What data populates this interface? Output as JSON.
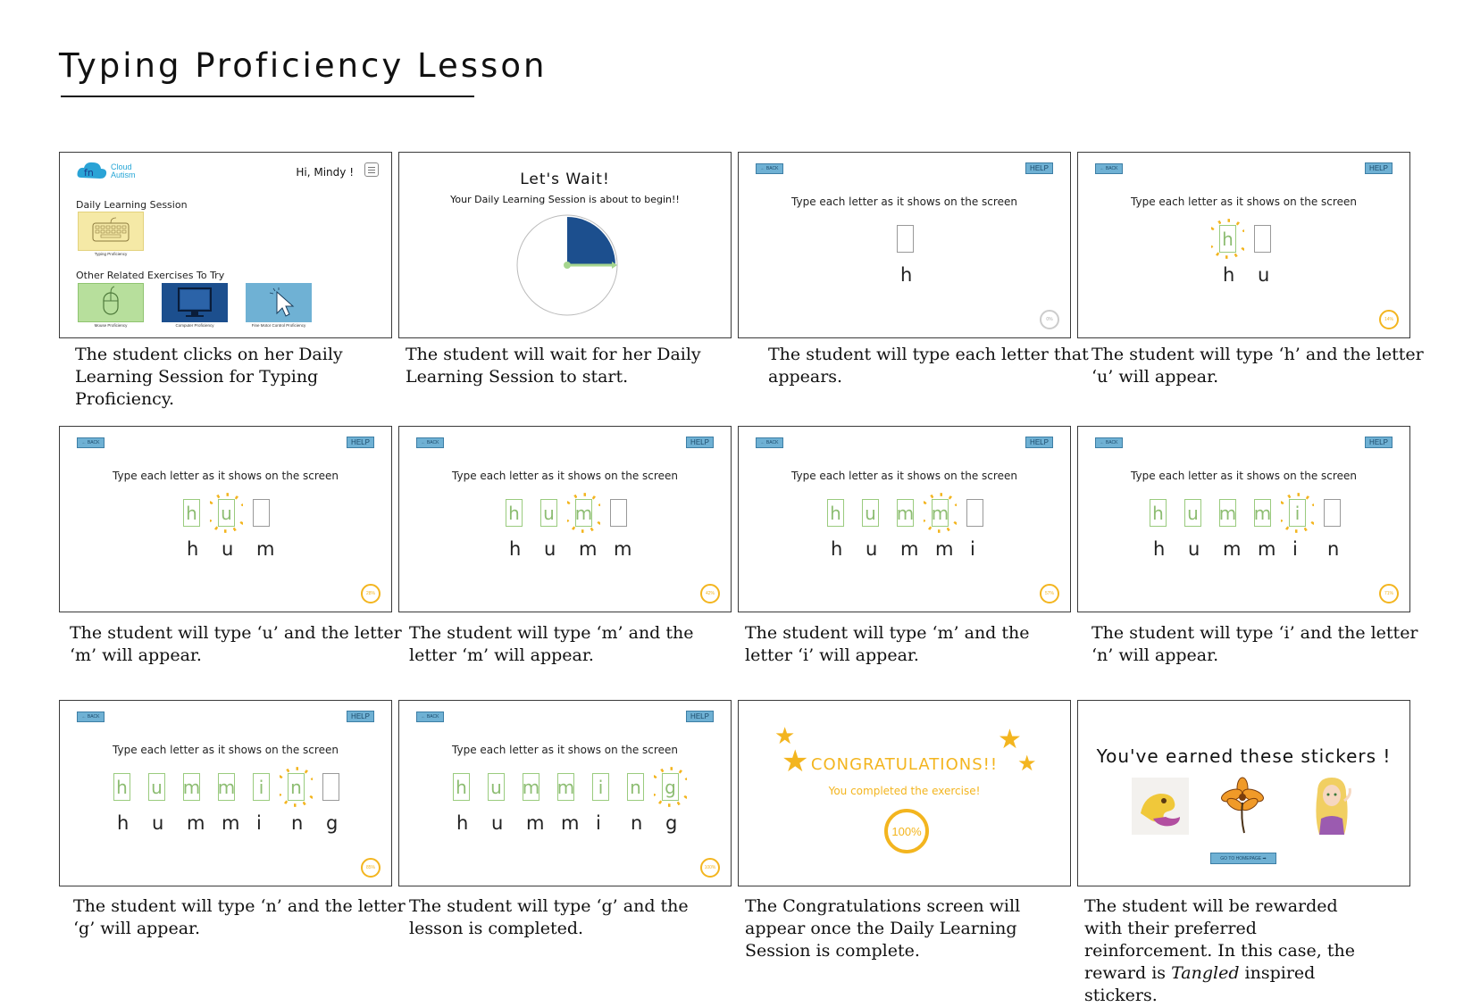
{
  "title": "Typing Proficiency Lesson",
  "instruction": "Type each letter as it shows on the screen",
  "back_label": "← BACK",
  "help_label": "HELP",
  "panel1": {
    "logo_line1": "Cloud",
    "logo_line2": "Autism",
    "greeting": "Hi, Mindy !",
    "daily_label": "Daily Learning Session",
    "typing_tile_label": "Typing Proficiency",
    "other_label": "Other Related Exercises To Try",
    "mouse_tile_label": "Mouse Proficiency",
    "computer_tile_label": "Computer Proficiency",
    "finemotor_tile_label": "Fine Motor Control Proficiency"
  },
  "panel2": {
    "title": "Let's Wait!",
    "subtitle": "Your Daily Learning Session is about to begin!!",
    "timer_fraction": 0.25
  },
  "steps": [
    {
      "typed": [],
      "next": "h",
      "shown": [
        "h"
      ],
      "progress": "0%"
    },
    {
      "typed": [
        "h"
      ],
      "next": "u",
      "shown": [
        "h",
        "u"
      ],
      "progress": "14%"
    },
    {
      "typed": [
        "h",
        "u"
      ],
      "next": "m",
      "shown": [
        "h",
        "u",
        "m"
      ],
      "progress": "28%"
    },
    {
      "typed": [
        "h",
        "u",
        "m"
      ],
      "next": "m",
      "shown": [
        "h",
        "u",
        "m",
        "m"
      ],
      "progress": "42%"
    },
    {
      "typed": [
        "h",
        "u",
        "m",
        "m"
      ],
      "next": "i",
      "shown": [
        "h",
        "u",
        "m",
        "m",
        "i"
      ],
      "progress": "57%"
    },
    {
      "typed": [
        "h",
        "u",
        "m",
        "m",
        "i"
      ],
      "next": "n",
      "shown": [
        "h",
        "u",
        "m",
        "m",
        "i",
        "n"
      ],
      "progress": "71%"
    },
    {
      "typed": [
        "h",
        "u",
        "m",
        "m",
        "i",
        "n"
      ],
      "next": "g",
      "shown": [
        "h",
        "u",
        "m",
        "m",
        "i",
        "n",
        "g"
      ],
      "progress": "85%"
    },
    {
      "typed": [
        "h",
        "u",
        "m",
        "m",
        "i",
        "n",
        "g"
      ],
      "next": "",
      "shown": [
        "h",
        "u",
        "m",
        "m",
        "i",
        "n",
        "g"
      ],
      "progress": "100%"
    }
  ],
  "congrats": {
    "title": "CONGRATULATIONS!!",
    "subtitle": "You completed the exercise!",
    "progress": "100%"
  },
  "stickers": {
    "title": "You've earned these stickers !",
    "home_label": "GO TO HOMEPAGE ➡"
  },
  "captions": [
    "The student clicks on her Daily Learning Session for Typing Proficiency.",
    "The student will wait for her Daily Learning Session to start.",
    "The student will type each letter that appears.",
    "The student will type ‘h’ and the letter ‘u’ will appear.",
    "The student will type ‘u’ and the letter ‘m’ will appear.",
    "The student will type ‘m’ and the letter ‘m’ will appear.",
    "The student will type ‘m’ and the letter ‘i’ will appear.",
    "The student will type ‘i’ and the letter ‘n’ will appear.",
    "The student will type ‘n’ and the letter ‘g’ will appear.",
    "The student will type ‘g’ and the lesson is completed.",
    "The Congratulations screen will appear once the Daily Learning Session is complete.",
    "The student will be rewarded with their preferred reinforcement. In this case, the reward is Tangled inspired stickers."
  ],
  "colors": {
    "accent": "#f3b51f",
    "typed_green": "#8dbd72",
    "button_blue": "#6fb1d4",
    "timer_blue": "#1c4f8e"
  }
}
